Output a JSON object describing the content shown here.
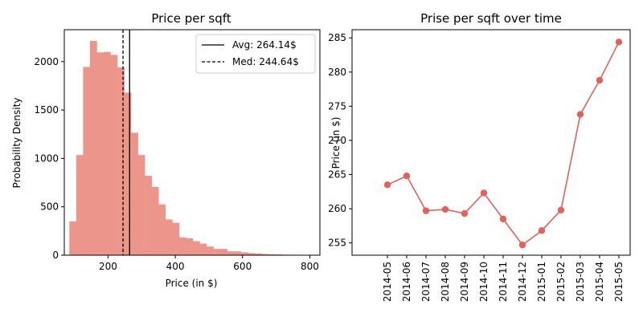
{
  "chart_data": [
    {
      "type": "bar",
      "title": "Price per sqft",
      "xlabel": "Price (in $)",
      "ylabel": "Probability Density",
      "xlim": [
        70,
        830
      ],
      "ylim": [
        0,
        2330
      ],
      "xticks": [
        200,
        400,
        600,
        800
      ],
      "yticks": [
        0,
        500,
        1000,
        1500,
        2000
      ],
      "color": "#eb958b",
      "bin_start": 85,
      "bin_width": 20.4,
      "values": [
        350,
        1035,
        1945,
        2215,
        2095,
        2100,
        2070,
        1940,
        1680,
        1265,
        1035,
        820,
        705,
        525,
        370,
        335,
        185,
        175,
        145,
        120,
        90,
        65,
        65,
        40,
        40,
        30,
        22,
        18,
        12,
        10,
        8,
        5,
        3,
        2,
        1
      ],
      "avg": 264.14,
      "median": 244.64,
      "legend": [
        "Avg: 264.14$",
        "Med: 244.64$"
      ],
      "legend_position": "top-right",
      "grid": false
    },
    {
      "type": "line",
      "title": "Prise per sqft over time",
      "xlabel": "",
      "ylabel": "Price (in $)",
      "ylim": [
        253.2,
        286.2
      ],
      "yticks": [
        255,
        260,
        265,
        270,
        275,
        280,
        285
      ],
      "color": "#e0625a",
      "categories": [
        "2014-05",
        "2014-06",
        "2014-07",
        "2014-08",
        "2014-09",
        "2014-10",
        "2014-11",
        "2014-12",
        "2015-01",
        "2015-02",
        "2015-03",
        "2015-04",
        "2015-05"
      ],
      "values": [
        263.5,
        264.8,
        259.7,
        259.9,
        259.3,
        262.3,
        258.5,
        254.7,
        256.8,
        259.8,
        273.8,
        278.8,
        284.4
      ],
      "grid": false
    }
  ]
}
